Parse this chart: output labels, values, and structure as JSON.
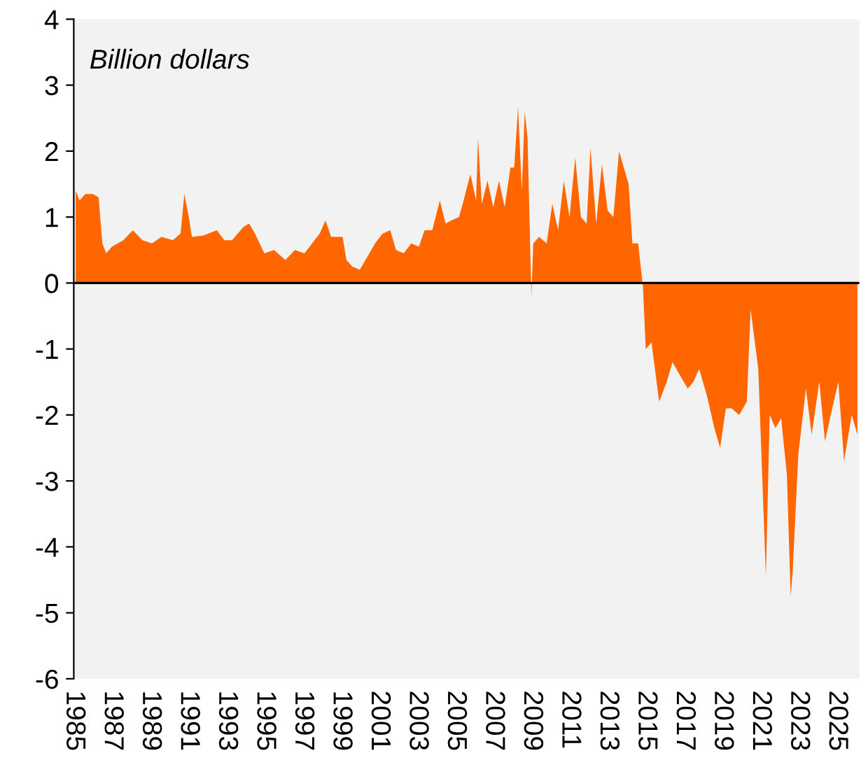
{
  "chart_data": {
    "type": "area",
    "ylabel": "Billion dollars",
    "x": [
      1985.1,
      1985.3,
      1985.6,
      1986.0,
      1986.3,
      1986.5,
      1986.7,
      1987.0,
      1987.6,
      1988.1,
      1988.6,
      1989.1,
      1989.6,
      1990.2,
      1990.6,
      1990.8,
      1991.0,
      1991.2,
      1991.8,
      1992.5,
      1992.9,
      1993.3,
      1993.9,
      1994.2,
      1994.5,
      1995.0,
      1995.5,
      1996.1,
      1996.6,
      1997.1,
      1997.5,
      1997.9,
      1998.2,
      1998.5,
      1999.1,
      1999.3,
      1999.6,
      2000.0,
      2000.4,
      2000.8,
      2001.2,
      2001.6,
      2001.9,
      2002.3,
      2002.7,
      2003.1,
      2003.4,
      2003.8,
      2004.2,
      2004.5,
      2004.8,
      2005.2,
      2005.4,
      2005.8,
      2006.1,
      2006.2,
      2006.4,
      2006.7,
      2007.0,
      2007.3,
      2007.6,
      2007.9,
      2008.1,
      2008.3,
      2008.5,
      2008.65,
      2008.8,
      2009.0,
      2009.1,
      2009.4,
      2009.8,
      2010.1,
      2010.4,
      2010.7,
      2011.0,
      2011.3,
      2011.6,
      2011.9,
      2012.1,
      2012.4,
      2012.7,
      2013.0,
      2013.3,
      2013.6,
      2013.9,
      2014.1,
      2014.3,
      2014.6,
      2014.85,
      2015.0,
      2015.3,
      2015.7,
      2016.1,
      2016.4,
      2016.8,
      2017.2,
      2017.5,
      2017.8,
      2018.2,
      2018.6,
      2018.9,
      2019.2,
      2019.5,
      2019.9,
      2020.3,
      2020.5,
      2020.9,
      2021.3,
      2021.5,
      2021.8,
      2022.1,
      2022.4,
      2022.6,
      2022.7,
      2023.0,
      2023.4,
      2023.7,
      2024.1,
      2024.4,
      2024.7,
      2025.1,
      2025.4,
      2025.8,
      2026.1
    ],
    "values": [
      1.4,
      1.25,
      1.35,
      1.35,
      1.3,
      0.6,
      0.45,
      0.55,
      0.65,
      0.8,
      0.65,
      0.6,
      0.7,
      0.65,
      0.75,
      1.35,
      1.05,
      0.7,
      0.72,
      0.8,
      0.65,
      0.65,
      0.85,
      0.9,
      0.75,
      0.45,
      0.5,
      0.35,
      0.5,
      0.45,
      0.6,
      0.75,
      0.95,
      0.7,
      0.7,
      0.35,
      0.25,
      0.2,
      0.4,
      0.6,
      0.75,
      0.8,
      0.5,
      0.45,
      0.6,
      0.55,
      0.8,
      0.8,
      1.25,
      0.9,
      0.95,
      1.0,
      1.2,
      1.65,
      1.25,
      2.2,
      1.2,
      1.55,
      1.15,
      1.55,
      1.15,
      1.75,
      1.75,
      2.67,
      1.4,
      2.6,
      2.2,
      -0.2,
      0.6,
      0.7,
      0.6,
      1.2,
      0.8,
      1.55,
      1.0,
      1.9,
      1.0,
      0.9,
      2.05,
      0.9,
      1.8,
      1.1,
      1.0,
      2.0,
      1.7,
      1.5,
      0.6,
      0.6,
      -0.05,
      -1.0,
      -0.9,
      -1.8,
      -1.5,
      -1.2,
      -1.4,
      -1.6,
      -1.5,
      -1.3,
      -1.7,
      -2.2,
      -2.5,
      -1.9,
      -1.9,
      -2.0,
      -1.8,
      -0.4,
      -1.3,
      -4.45,
      -2.0,
      -2.2,
      -2.05,
      -2.9,
      -4.75,
      -4.4,
      -2.6,
      -1.6,
      -2.3,
      -1.5,
      -2.4,
      -2.0,
      -1.5,
      -2.7,
      -2.0,
      -2.3
    ],
    "color": "#ff6600",
    "xlim": [
      1985,
      2026.2
    ],
    "xticks": [
      1985,
      1987,
      1989,
      1991,
      1993,
      1995,
      1997,
      1999,
      2001,
      2003,
      2005,
      2007,
      2009,
      2011,
      2013,
      2015,
      2017,
      2019,
      2021,
      2023,
      2025
    ],
    "ylim": [
      -6,
      4
    ],
    "yticks": [
      -6,
      -5,
      -4,
      -3,
      -2,
      -1,
      0,
      1,
      2,
      3,
      4
    ],
    "ref_lines": [
      {
        "axis": "y",
        "value": 0,
        "color": "#000000"
      }
    ],
    "legend": false
  }
}
